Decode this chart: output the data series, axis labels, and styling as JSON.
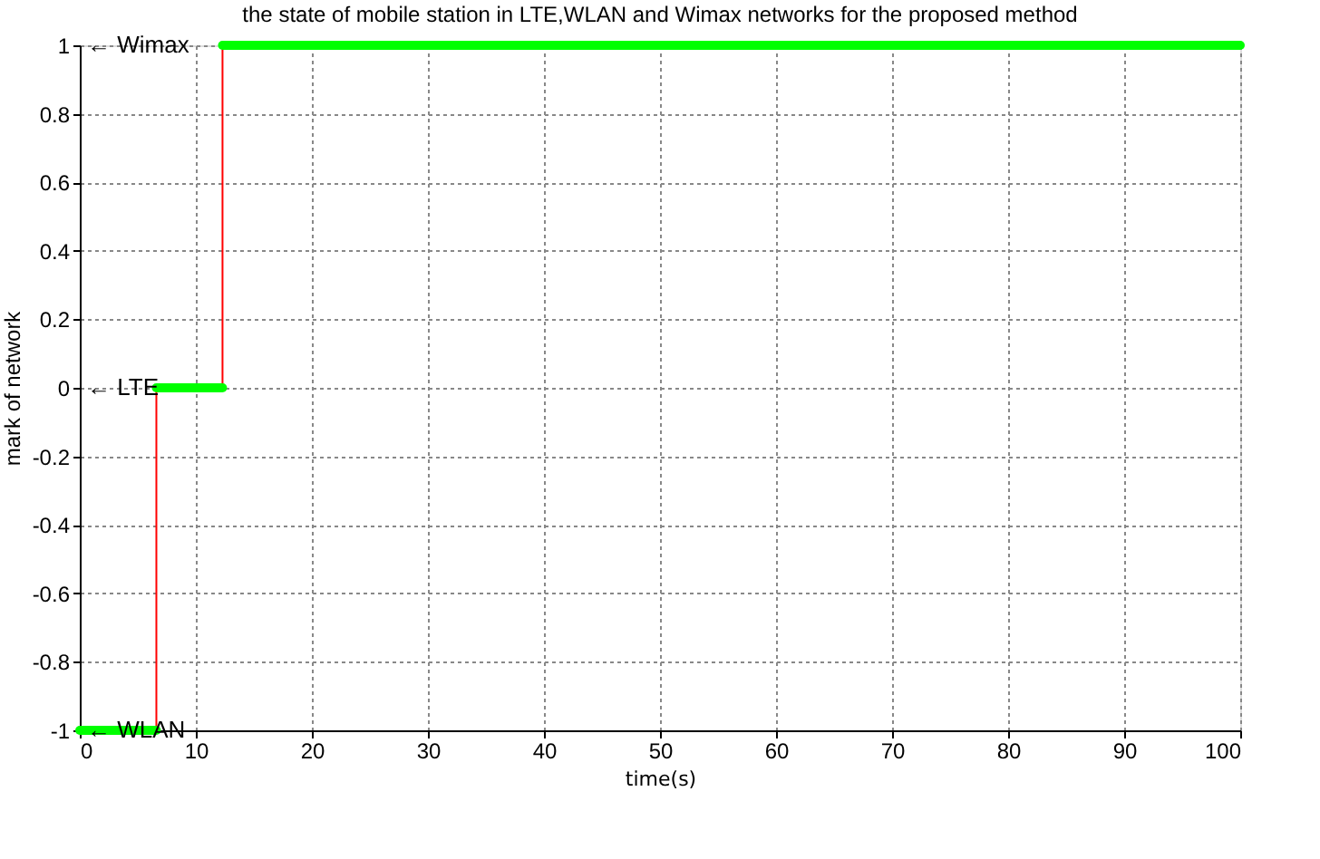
{
  "chart_data": {
    "type": "line",
    "title": "the state of mobile station in LTE,WLAN and Wimax networks for the proposed method",
    "xlabel": "time(s)",
    "ylabel": "mark of network",
    "series": [
      {
        "color": "#ff0000",
        "x": [
          6.6,
          6.6
        ],
        "values": [
          -1,
          0
        ]
      },
      {
        "color": "#ff0000",
        "x": [
          12.3,
          12.3
        ],
        "values": [
          0,
          1
        ]
      },
      {
        "color": "#00ff00",
        "x": [
          0,
          6.6
        ],
        "values": [
          -1,
          -1
        ]
      },
      {
        "color": "#00ff00",
        "x": [
          6.6,
          12.3
        ],
        "values": [
          0,
          0
        ]
      },
      {
        "color": "#00ff00",
        "x": [
          12.3,
          100
        ],
        "values": [
          1,
          1
        ]
      }
    ],
    "annotations": [
      "← Wimax",
      "← LTE",
      "← WLAN"
    ],
    "xlim": [
      0,
      100
    ],
    "xticks": [
      0,
      10,
      20,
      30,
      40,
      50,
      60,
      70,
      80,
      90,
      100
    ],
    "ylim": [
      -1,
      1
    ],
    "yticks": [
      -1,
      -0.8,
      -0.6,
      -0.4,
      -0.2,
      0,
      0.2,
      0.4,
      0.6,
      0.8,
      1
    ],
    "grid": true,
    "legend": false,
    "marker": "none",
    "line_style": "solid"
  }
}
